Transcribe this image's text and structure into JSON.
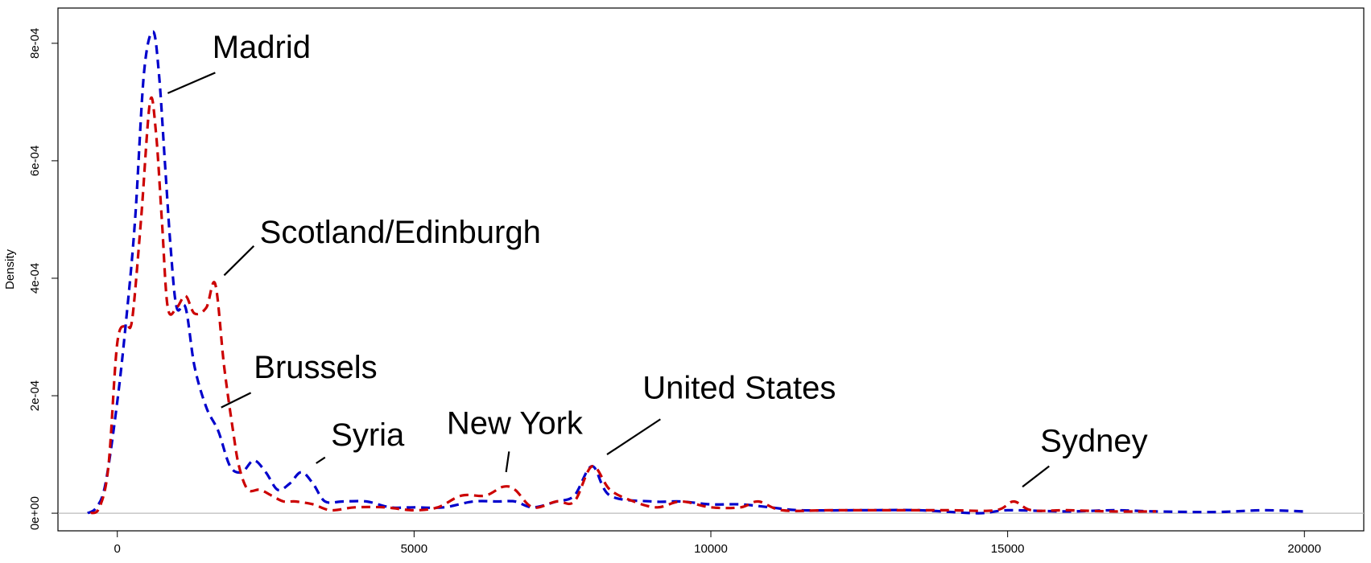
{
  "chart_data": {
    "type": "line",
    "title": "",
    "xlabel": "",
    "ylabel": "Density",
    "xlim": [
      -1000,
      21000
    ],
    "ylim": [
      -3e-05,
      0.00086
    ],
    "grid": false,
    "legend": "none",
    "x_ticks": [
      {
        "value": 0,
        "label": "0"
      },
      {
        "value": 5000,
        "label": "5000"
      },
      {
        "value": 10000,
        "label": "10000"
      },
      {
        "value": 15000,
        "label": "15000"
      },
      {
        "value": 20000,
        "label": "20000"
      }
    ],
    "y_ticks": [
      {
        "value": 0,
        "label": "0e+00"
      },
      {
        "value": 0.0002,
        "label": "2e-04"
      },
      {
        "value": 0.0004,
        "label": "4e-04"
      },
      {
        "value": 0.0006,
        "label": "6e-04"
      },
      {
        "value": 0.0008,
        "label": "8e-04"
      }
    ],
    "baseline": {
      "y": 0,
      "color": "#bbbbbb"
    },
    "series": [
      {
        "color": "#0000cc",
        "style": "dashed",
        "points": [
          [
            -500,
            0
          ],
          [
            -350,
            1e-05
          ],
          [
            -200,
            5e-05
          ],
          [
            0,
            0.00019
          ],
          [
            150,
            0.00033
          ],
          [
            300,
            0.0005
          ],
          [
            450,
            0.00075
          ],
          [
            600,
            0.00082
          ],
          [
            700,
            0.00075
          ],
          [
            800,
            0.0006
          ],
          [
            900,
            0.00045
          ],
          [
            1000,
            0.00035
          ],
          [
            1150,
            0.00035
          ],
          [
            1300,
            0.00025
          ],
          [
            1500,
            0.00018
          ],
          [
            1700,
            0.00014
          ],
          [
            1900,
            8e-05
          ],
          [
            2100,
            7e-05
          ],
          [
            2300,
            9e-05
          ],
          [
            2500,
            7e-05
          ],
          [
            2700,
            4e-05
          ],
          [
            2900,
            5e-05
          ],
          [
            3100,
            7e-05
          ],
          [
            3300,
            5e-05
          ],
          [
            3500,
            2e-05
          ],
          [
            3800,
            2e-05
          ],
          [
            4200,
            2e-05
          ],
          [
            4600,
            1e-05
          ],
          [
            5000,
            1e-05
          ],
          [
            5500,
            1e-05
          ],
          [
            6000,
            2e-05
          ],
          [
            6400,
            2e-05
          ],
          [
            6700,
            2e-05
          ],
          [
            7000,
            1e-05
          ],
          [
            7400,
            2e-05
          ],
          [
            7700,
            3e-05
          ],
          [
            8000,
            8e-05
          ],
          [
            8300,
            3e-05
          ],
          [
            9000,
            2e-05
          ],
          [
            9500,
            2e-05
          ],
          [
            10000,
            1.5e-05
          ],
          [
            10500,
            1.5e-05
          ],
          [
            11000,
            1e-05
          ],
          [
            11500,
            5e-06
          ],
          [
            12500,
            5e-06
          ],
          [
            13500,
            5e-06
          ],
          [
            14500,
            0
          ],
          [
            15000,
            5e-06
          ],
          [
            16000,
            3e-06
          ],
          [
            16800,
            5e-06
          ],
          [
            17500,
            3e-06
          ],
          [
            18500,
            2e-06
          ],
          [
            19300,
            5e-06
          ],
          [
            20000,
            3e-06
          ]
        ]
      },
      {
        "color": "#cc0000",
        "style": "dashed",
        "points": [
          [
            -450,
            0
          ],
          [
            -300,
            1e-05
          ],
          [
            -150,
            8e-05
          ],
          [
            0,
            0.00029
          ],
          [
            150,
            0.00032
          ],
          [
            250,
            0.00033
          ],
          [
            400,
            0.0005
          ],
          [
            550,
            0.0007
          ],
          [
            650,
            0.00065
          ],
          [
            750,
            0.0005
          ],
          [
            850,
            0.00035
          ],
          [
            1000,
            0.00035
          ],
          [
            1150,
            0.00037
          ],
          [
            1300,
            0.00034
          ],
          [
            1500,
            0.00035
          ],
          [
            1650,
            0.00039
          ],
          [
            1800,
            0.00025
          ],
          [
            1950,
            0.00014
          ],
          [
            2050,
            8e-05
          ],
          [
            2200,
            4e-05
          ],
          [
            2400,
            4e-05
          ],
          [
            2600,
            3e-05
          ],
          [
            2800,
            2e-05
          ],
          [
            3000,
            2e-05
          ],
          [
            3300,
            1.5e-05
          ],
          [
            3600,
            5e-06
          ],
          [
            4000,
            1e-05
          ],
          [
            4500,
            1e-05
          ],
          [
            5000,
            5e-06
          ],
          [
            5400,
            1e-05
          ],
          [
            5800,
            3e-05
          ],
          [
            6200,
            3e-05
          ],
          [
            6500,
            4.5e-05
          ],
          [
            6700,
            4e-05
          ],
          [
            7000,
            1e-05
          ],
          [
            7400,
            2e-05
          ],
          [
            7700,
            2e-05
          ],
          [
            8000,
            8e-05
          ],
          [
            8300,
            4e-05
          ],
          [
            8700,
            2e-05
          ],
          [
            9100,
            1e-05
          ],
          [
            9500,
            2e-05
          ],
          [
            10000,
            1e-05
          ],
          [
            10500,
            1e-05
          ],
          [
            10800,
            2e-05
          ],
          [
            11200,
            5e-06
          ],
          [
            12000,
            5e-06
          ],
          [
            13000,
            5e-06
          ],
          [
            14000,
            5e-06
          ],
          [
            14800,
            5e-06
          ],
          [
            15100,
            2e-05
          ],
          [
            15400,
            5e-06
          ],
          [
            16000,
            5e-06
          ],
          [
            16800,
            3e-06
          ],
          [
            17500,
            3e-06
          ]
        ]
      }
    ],
    "annotations": [
      {
        "text": "Madrid",
        "x": 1600,
        "y": 0.000775,
        "ax": 1650,
        "ay": 0.00075,
        "bx": 850,
        "by": 0.000715
      },
      {
        "text": "Scotland/Edinburgh",
        "x": 2400,
        "y": 0.00046,
        "ax": 2300,
        "ay": 0.000455,
        "bx": 1800,
        "by": 0.000405
      },
      {
        "text": "Brussels",
        "x": 2300,
        "y": 0.00023,
        "ax": 2250,
        "ay": 0.000205,
        "bx": 1750,
        "by": 0.00018
      },
      {
        "text": "Syria",
        "x": 3600,
        "y": 0.000115,
        "ax": 3500,
        "ay": 9.5e-05,
        "bx": 3350,
        "by": 8.5e-05
      },
      {
        "text": "New York",
        "x": 5550,
        "y": 0.000135,
        "ax": 6600,
        "ay": 0.000105,
        "bx": 6550,
        "by": 7e-05
      },
      {
        "text": "United States",
        "x": 8850,
        "y": 0.000195,
        "ax": 9150,
        "ay": 0.00016,
        "bx": 8250,
        "by": 0.0001
      },
      {
        "text": "Sydney",
        "x": 15550,
        "y": 0.000105,
        "ax": 15700,
        "ay": 8e-05,
        "bx": 15250,
        "by": 4.5e-05
      }
    ]
  }
}
